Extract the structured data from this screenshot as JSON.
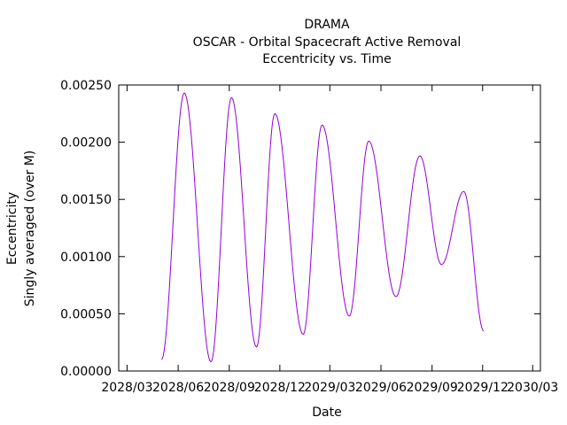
{
  "chart_data": {
    "type": "line",
    "title": "DRAMA",
    "subtitle": "OSCAR - Orbital Spacecraft Active Removal",
    "subtitle2": "Eccentricity vs. Time",
    "xlabel": "Date",
    "ylabel": "Eccentricity",
    "ylabel2": "Singly averaged (over M)",
    "xlim": [
      "2028-02-15",
      "2030-03-15"
    ],
    "ylim": [
      0,
      0.0025
    ],
    "grid": false,
    "line_color": "#9400d3",
    "xticks": [
      {
        "date": "2028-03-01",
        "label": "2028/03"
      },
      {
        "date": "2028-06-01",
        "label": "2028/06"
      },
      {
        "date": "2028-09-01",
        "label": "2028/09"
      },
      {
        "date": "2028-12-01",
        "label": "2028/12"
      },
      {
        "date": "2029-03-01",
        "label": "2029/03"
      },
      {
        "date": "2029-06-01",
        "label": "2029/06"
      },
      {
        "date": "2029-09-01",
        "label": "2029/09"
      },
      {
        "date": "2029-12-01",
        "label": "2029/12"
      },
      {
        "date": "2030-03-01",
        "label": "2030/03"
      }
    ],
    "yticks": [
      {
        "value": 0,
        "label": "0.00000"
      },
      {
        "value": 0.0005,
        "label": "0.00050"
      },
      {
        "value": 0.001,
        "label": "0.00100"
      },
      {
        "value": 0.0015,
        "label": "0.00150"
      },
      {
        "value": 0.002,
        "label": "0.00200"
      },
      {
        "value": 0.0025,
        "label": "0.00250"
      }
    ],
    "series": [
      {
        "points": [
          [
            "2028-05-02",
            0.0001
          ],
          [
            "2028-06-12",
            0.00243
          ],
          [
            "2028-07-30",
            8e-05
          ],
          [
            "2028-09-05",
            0.00239
          ],
          [
            "2028-10-20",
            0.00021
          ],
          [
            "2028-11-22",
            0.00225
          ],
          [
            "2029-01-12",
            0.00032
          ],
          [
            "2029-02-15",
            0.00215
          ],
          [
            "2029-04-05",
            0.00048
          ],
          [
            "2029-05-10",
            0.00201
          ],
          [
            "2029-06-28",
            0.00065
          ],
          [
            "2029-08-10",
            0.00188
          ],
          [
            "2029-09-18",
            0.00093
          ],
          [
            "2029-10-28",
            0.00157
          ],
          [
            "2029-12-03",
            0.00035
          ]
        ]
      }
    ]
  }
}
